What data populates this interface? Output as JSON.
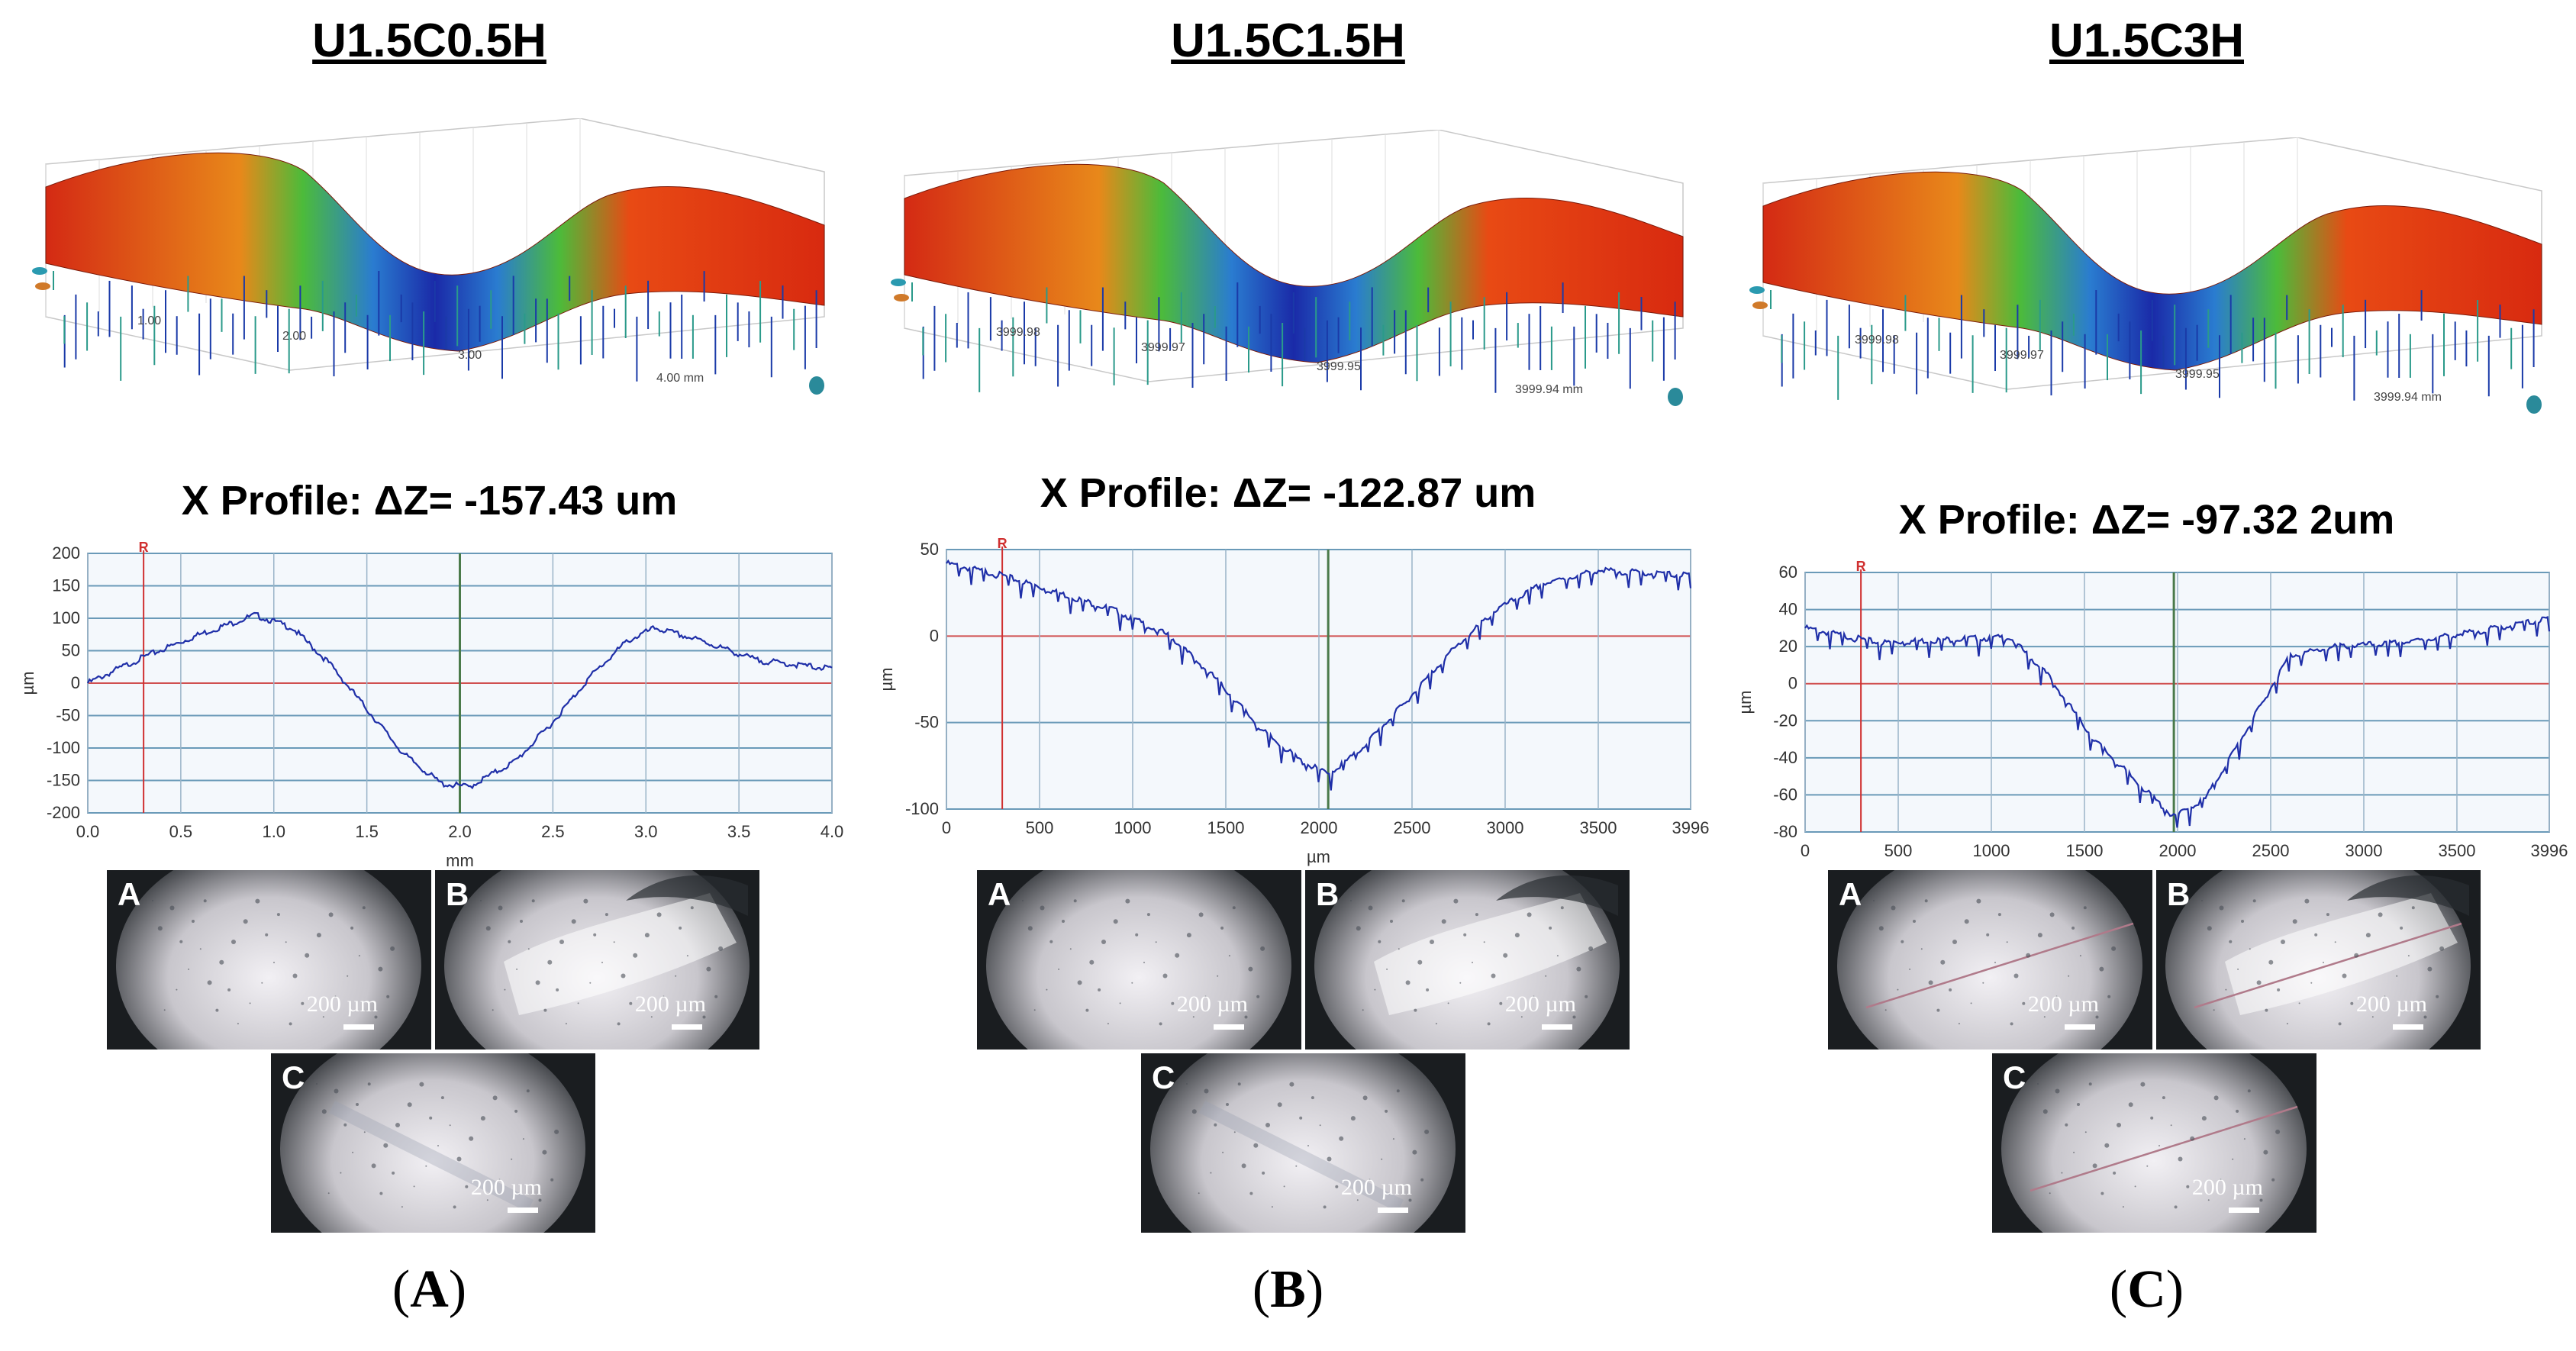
{
  "panels": [
    {
      "id": "A",
      "title": "U1.5C0.5H",
      "label_open": "(",
      "label_letter": "A",
      "label_close": ")",
      "surface_ticks": [
        "1.00",
        "2.00",
        "3.00",
        "4.00 mm"
      ],
      "profile": {
        "title": "X Profile: ΔZ= -157.43 um",
        "xlabel": "mm",
        "ylabel": "µm",
        "xticks": [
          "0.0",
          "0.5",
          "1.0",
          "1.5",
          "2.0",
          "2.5",
          "3.0",
          "3.5",
          "4.0"
        ],
        "yticks": [
          "200",
          "150",
          "100",
          "50",
          "0",
          "-50",
          "-100",
          "-150",
          "-200"
        ],
        "marker": "R",
        "xlim": [
          0,
          4.0
        ],
        "ylim": [
          -200,
          200
        ],
        "cursor_x": 2.0,
        "points": [
          [
            0,
            0
          ],
          [
            0.3,
            40
          ],
          [
            0.6,
            75
          ],
          [
            0.9,
            105
          ],
          [
            1.1,
            85
          ],
          [
            1.3,
            30
          ],
          [
            1.5,
            -40
          ],
          [
            1.7,
            -110
          ],
          [
            1.9,
            -155
          ],
          [
            2.05,
            -160
          ],
          [
            2.3,
            -120
          ],
          [
            2.5,
            -60
          ],
          [
            2.7,
            10
          ],
          [
            2.9,
            65
          ],
          [
            3.05,
            85
          ],
          [
            3.3,
            65
          ],
          [
            3.6,
            35
          ],
          [
            4.0,
            22
          ]
        ]
      },
      "micros": [
        {
          "letter": "A",
          "scale": "200 µm",
          "kind": "plain"
        },
        {
          "letter": "B",
          "scale": "200 µm",
          "kind": "worn"
        },
        {
          "letter": "C",
          "scale": "200 µm",
          "kind": "scratch"
        }
      ]
    },
    {
      "id": "B",
      "title": "U1.5C1.5H",
      "label_open": "(",
      "label_letter": "B",
      "label_close": ")",
      "surface_ticks": [
        "3999.98",
        "3999.97",
        "3999.95",
        "3999.94 mm"
      ],
      "profile": {
        "title": "X Profile: ΔZ= -122.87 um",
        "xlabel": "µm",
        "ylabel": "µm",
        "xticks": [
          "0",
          "500",
          "1000",
          "1500",
          "2000",
          "2500",
          "3000",
          "3500",
          "3996"
        ],
        "yticks": [
          "50",
          "0",
          "-50",
          "-100"
        ],
        "marker": "R",
        "xlim": [
          0,
          3996
        ],
        "ylim": [
          -100,
          50
        ],
        "cursor_x": 2050,
        "points": [
          [
            0,
            42
          ],
          [
            300,
            35
          ],
          [
            600,
            25
          ],
          [
            900,
            15
          ],
          [
            1200,
            0
          ],
          [
            1450,
            -25
          ],
          [
            1700,
            -55
          ],
          [
            1900,
            -72
          ],
          [
            2050,
            -80
          ],
          [
            2200,
            -68
          ],
          [
            2450,
            -40
          ],
          [
            2700,
            -10
          ],
          [
            2950,
            15
          ],
          [
            3200,
            30
          ],
          [
            3500,
            38
          ],
          [
            3996,
            35
          ]
        ]
      },
      "micros": [
        {
          "letter": "A",
          "scale": "200 µm",
          "kind": "plain"
        },
        {
          "letter": "B",
          "scale": "200 µm",
          "kind": "worn"
        },
        {
          "letter": "C",
          "scale": "200 µm",
          "kind": "scratch"
        }
      ]
    },
    {
      "id": "C",
      "title": "U1.5C3H",
      "label_open": "(",
      "label_letter": "C",
      "label_close": ")",
      "surface_ticks": [
        "3999.98",
        "3999.97",
        "3999.95",
        "3999.94 mm"
      ],
      "profile": {
        "title": "X Profile: ΔZ= -97.32 2um",
        "xlabel": "µm",
        "ylabel": "µm",
        "xticks": [
          "0",
          "500",
          "1000",
          "1500",
          "2000",
          "2500",
          "3000",
          "3500",
          "3996"
        ],
        "yticks": [
          "60",
          "40",
          "20",
          "0",
          "-20",
          "-40",
          "-60",
          "-80"
        ],
        "marker": "R",
        "xlim": [
          0,
          3996
        ],
        "ylim": [
          -80,
          60
        ],
        "cursor_x": 1980,
        "points": [
          [
            0,
            30
          ],
          [
            400,
            22
          ],
          [
            800,
            24
          ],
          [
            1100,
            25
          ],
          [
            1300,
            5
          ],
          [
            1550,
            -30
          ],
          [
            1800,
            -55
          ],
          [
            1980,
            -72
          ],
          [
            2150,
            -62
          ],
          [
            2400,
            -20
          ],
          [
            2600,
            15
          ],
          [
            2850,
            20
          ],
          [
            3200,
            22
          ],
          [
            3600,
            28
          ],
          [
            3996,
            35
          ]
        ]
      },
      "micros": [
        {
          "letter": "A",
          "scale": "200 µm",
          "kind": "line"
        },
        {
          "letter": "B",
          "scale": "200 µm",
          "kind": "worn-line"
        },
        {
          "letter": "C",
          "scale": "200 µm",
          "kind": "line"
        }
      ]
    }
  ]
}
